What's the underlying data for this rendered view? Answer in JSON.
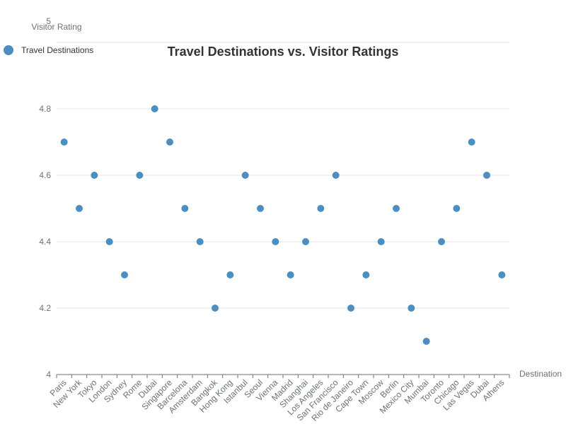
{
  "chart_data": {
    "type": "scatter",
    "title": "Travel Destinations vs. Visitor Ratings",
    "xlabel": "Destination",
    "ylabel": "Visitor Rating",
    "ylim": [
      4,
      5
    ],
    "y_ticks": [
      "4",
      "4.2",
      "4.4",
      "4.6",
      "4.8",
      "5"
    ],
    "legend": {
      "placement": "top-left"
    },
    "grid": true,
    "series": [
      {
        "name": "Travel Destinations",
        "color": "#4a8ec2"
      }
    ],
    "categories": [
      "Paris",
      "New York",
      "Tokyo",
      "London",
      "Sydney",
      "Rome",
      "Dubai",
      "Singapore",
      "Barcelona",
      "Amsterdam",
      "Bangkok",
      "Hong Kong",
      "Istanbul",
      "Seoul",
      "Vienna",
      "Madrid",
      "Shanghai",
      "Los Angeles",
      "San Francisco",
      "Rio de Janeiro",
      "Cape Town",
      "Moscow",
      "Berlin",
      "Mexico City",
      "Mumbai",
      "Toronto",
      "Chicago",
      "Las Vegas",
      "Dubai",
      "Athens"
    ],
    "values": [
      4.7,
      4.5,
      4.6,
      4.4,
      4.3,
      4.6,
      4.8,
      4.7,
      4.5,
      4.4,
      4.2,
      4.3,
      4.6,
      4.5,
      4.4,
      4.3,
      4.4,
      4.5,
      4.6,
      4.2,
      4.3,
      4.4,
      4.5,
      4.2,
      4.1,
      4.4,
      4.5,
      4.7,
      4.6,
      4.3
    ]
  }
}
